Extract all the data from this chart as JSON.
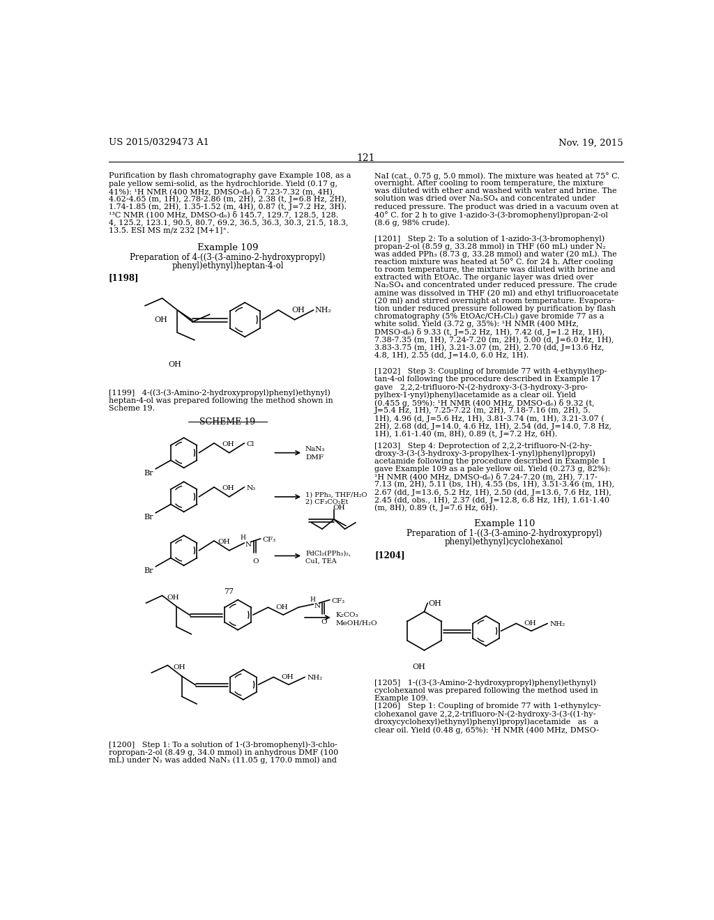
{
  "page_header_left": "US 2015/0329473 A1",
  "page_header_right": "Nov. 19, 2015",
  "page_number": "121",
  "background_color": "#ffffff",
  "text_color": "#000000"
}
